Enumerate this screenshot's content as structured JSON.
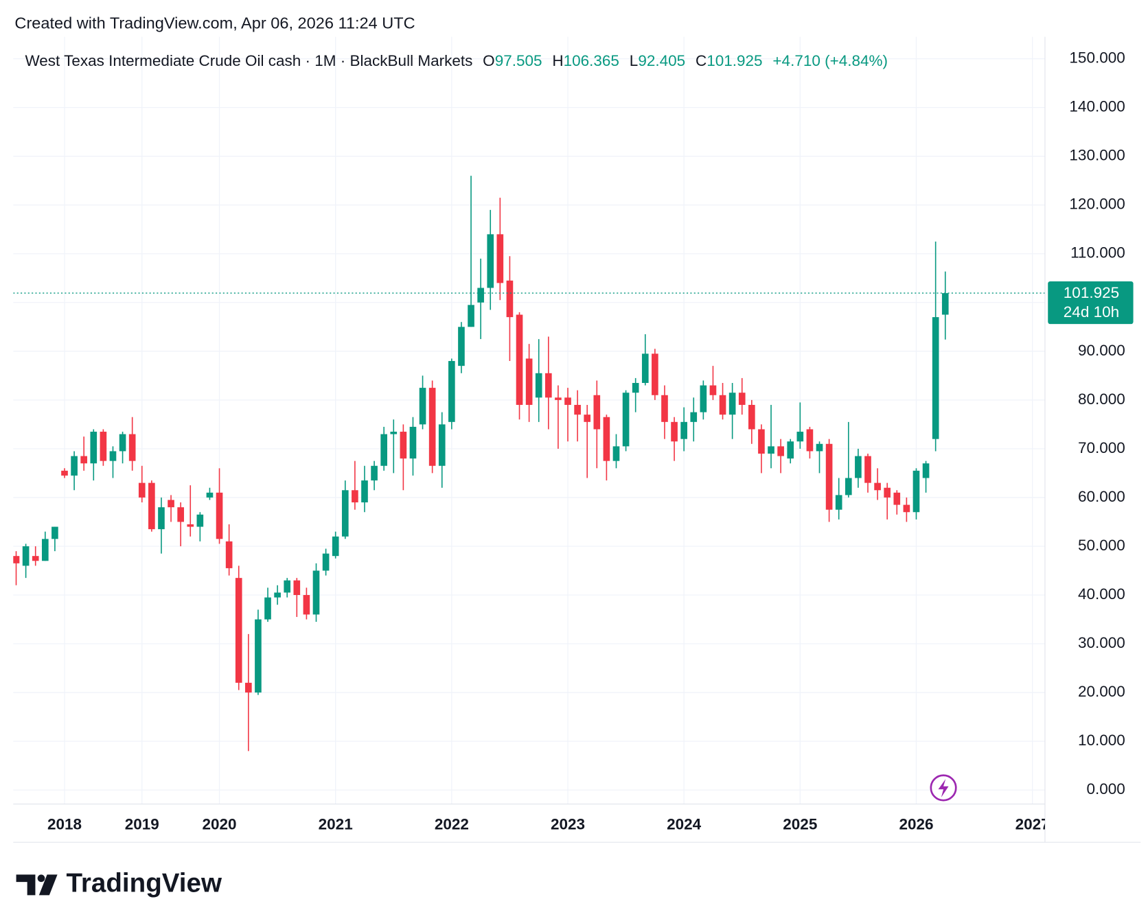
{
  "chart_data": {
    "type": "candlestick",
    "created_note": "Created with TradingView.com, Apr 06, 2026 11:24 UTC",
    "title": "West Texas Intermediate Crude Oil cash · 1M · BlackBull Markets",
    "ohlc_labels": [
      "O",
      "H",
      "L",
      "C"
    ],
    "change_label": "+4.710 (+4.84%)",
    "countdown": "24d 10h",
    "brand": "TradingView",
    "up_color": "#089981",
    "down_color": "#f23645",
    "grid": true,
    "xlim": [
      -0.3,
      106.3
    ],
    "xticks": [
      {
        "value": 5,
        "label": "2018"
      },
      {
        "value": 13,
        "label": "2019"
      },
      {
        "value": 21,
        "label": "2020"
      },
      {
        "value": 33,
        "label": "2021"
      },
      {
        "value": 45,
        "label": "2022"
      },
      {
        "value": 57,
        "label": "2023"
      },
      {
        "value": 69,
        "label": "2024"
      },
      {
        "value": 81,
        "label": "2025"
      },
      {
        "value": 93,
        "label": "2026"
      },
      {
        "value": 105,
        "label": "2027"
      }
    ],
    "ylim": [
      -2.87,
      154.5
    ],
    "yticks": [
      {
        "value": 0,
        "label": "0.000"
      },
      {
        "value": 10,
        "label": "10.000"
      },
      {
        "value": 20,
        "label": "20.000"
      },
      {
        "value": 30,
        "label": "30.000"
      },
      {
        "value": 40,
        "label": "40.000"
      },
      {
        "value": 50,
        "label": "50.000"
      },
      {
        "value": 60,
        "label": "60.000"
      },
      {
        "value": 70,
        "label": "70.000"
      },
      {
        "value": 80,
        "label": "80.000"
      },
      {
        "value": 90,
        "label": "90.000"
      },
      {
        "value": 100,
        "label": "100.000"
      },
      {
        "value": 110,
        "label": "110.000"
      },
      {
        "value": 120,
        "label": "120.000"
      },
      {
        "value": 130,
        "label": "130.000"
      },
      {
        "value": 140,
        "label": "140.000"
      },
      {
        "value": 150,
        "label": "150.000"
      }
    ],
    "open": [
      48,
      46,
      48,
      47,
      51.5,
      65.5,
      64.5,
      68.5,
      67,
      73.5,
      67.5,
      69.5,
      73,
      63,
      63,
      53.5,
      59.5,
      58,
      54.5,
      54,
      60,
      61,
      51,
      43.5,
      22,
      20,
      35,
      39.5,
      40.5,
      43,
      40,
      36,
      45,
      48,
      52,
      61.5,
      59,
      63.5,
      66.5,
      73,
      73.5,
      68,
      75,
      82.5,
      66.5,
      75.5,
      87,
      95,
      100,
      103,
      114,
      104.5,
      97.5,
      88.5,
      80.5,
      85.5,
      80.5,
      80.5,
      79,
      77,
      81,
      76.5,
      67.5,
      70.5,
      81.5,
      83.5,
      89.5,
      81,
      75.5,
      72,
      75.5,
      77.5,
      83,
      81,
      77,
      81.5,
      79,
      74,
      69,
      70.5,
      68,
      71.5,
      74,
      69.5,
      71,
      57.5,
      60.5,
      64,
      68.5,
      63,
      62,
      61,
      58.5,
      57,
      64,
      72,
      97.505
    ],
    "high": [
      49,
      50.5,
      50,
      53,
      54,
      66,
      69.5,
      72.5,
      74,
      74,
      70.5,
      73.5,
      76.5,
      66.5,
      63.5,
      60,
      60.5,
      59,
      62.5,
      57,
      62,
      66,
      54.5,
      46,
      32,
      37,
      41.5,
      42,
      43.5,
      43.5,
      41.5,
      46.5,
      49.5,
      53,
      63.5,
      67.5,
      66.5,
      67.5,
      74.5,
      76,
      75,
      76.5,
      85,
      84,
      77.5,
      88.5,
      96,
      126,
      109,
      119,
      121.5,
      109.5,
      98,
      91.5,
      92.5,
      93,
      83,
      82.5,
      82,
      79,
      84,
      77,
      73,
      82,
      84.5,
      93.5,
      90.5,
      83,
      76.5,
      78.5,
      80.5,
      84,
      87,
      83.5,
      83.5,
      84.5,
      80,
      75,
      79,
      72,
      72,
      79.5,
      74.5,
      71.5,
      72,
      64,
      75.5,
      70,
      69,
      66,
      63,
      61.5,
      60,
      66,
      67.5,
      112.5,
      106.365
    ],
    "low": [
      42,
      43.5,
      46,
      47,
      49,
      64,
      61.5,
      65.5,
      63.5,
      66.5,
      64,
      67,
      65.5,
      59,
      53,
      48.5,
      55,
      50,
      52,
      51,
      59.5,
      50.5,
      44,
      20.5,
      8,
      19.5,
      34.5,
      38,
      39.5,
      35.5,
      35,
      34.5,
      44,
      47.5,
      51.5,
      57.5,
      57,
      61.5,
      65.5,
      65,
      61.5,
      64.5,
      74,
      65,
      62,
      74,
      85.5,
      95,
      92.5,
      98.5,
      100.5,
      88,
      76,
      75.5,
      75.5,
      74,
      70,
      71.5,
      71.5,
      64,
      66,
      63.5,
      66,
      69.5,
      77.5,
      83,
      80,
      72,
      67.5,
      69.5,
      71.5,
      76,
      80,
      76,
      72,
      77,
      71,
      65,
      66,
      65,
      67,
      70,
      68,
      65,
      55,
      55.5,
      60,
      62,
      61,
      59.5,
      55.5,
      56.5,
      55,
      55.5,
      61,
      69.5,
      92.405
    ],
    "close": [
      46.5,
      50,
      47,
      51.5,
      54,
      64.5,
      68.5,
      67,
      73.5,
      67.5,
      69.5,
      73,
      67.5,
      60,
      53.5,
      58,
      58,
      55,
      54,
      56.5,
      61,
      51.5,
      45.5,
      22,
      20,
      35,
      39.5,
      40.5,
      43,
      40,
      36,
      45,
      48.5,
      52,
      61.5,
      59,
      63.5,
      66.5,
      73,
      73.5,
      68,
      74.5,
      82.5,
      66.5,
      75,
      88,
      95,
      99.5,
      103,
      114,
      104,
      97,
      79,
      79,
      85.5,
      80.5,
      80,
      79,
      77,
      75.5,
      74,
      67.5,
      70.5,
      81.5,
      83.5,
      89.5,
      81,
      75.5,
      71.5,
      75.5,
      77.5,
      83,
      81,
      77,
      81.5,
      79,
      74,
      69,
      70.5,
      68.5,
      71.5,
      73.5,
      69.5,
      71,
      57.5,
      60.5,
      64,
      68.5,
      63,
      61.5,
      60,
      58.5,
      57,
      65.5,
      67,
      97,
      101.925
    ]
  }
}
